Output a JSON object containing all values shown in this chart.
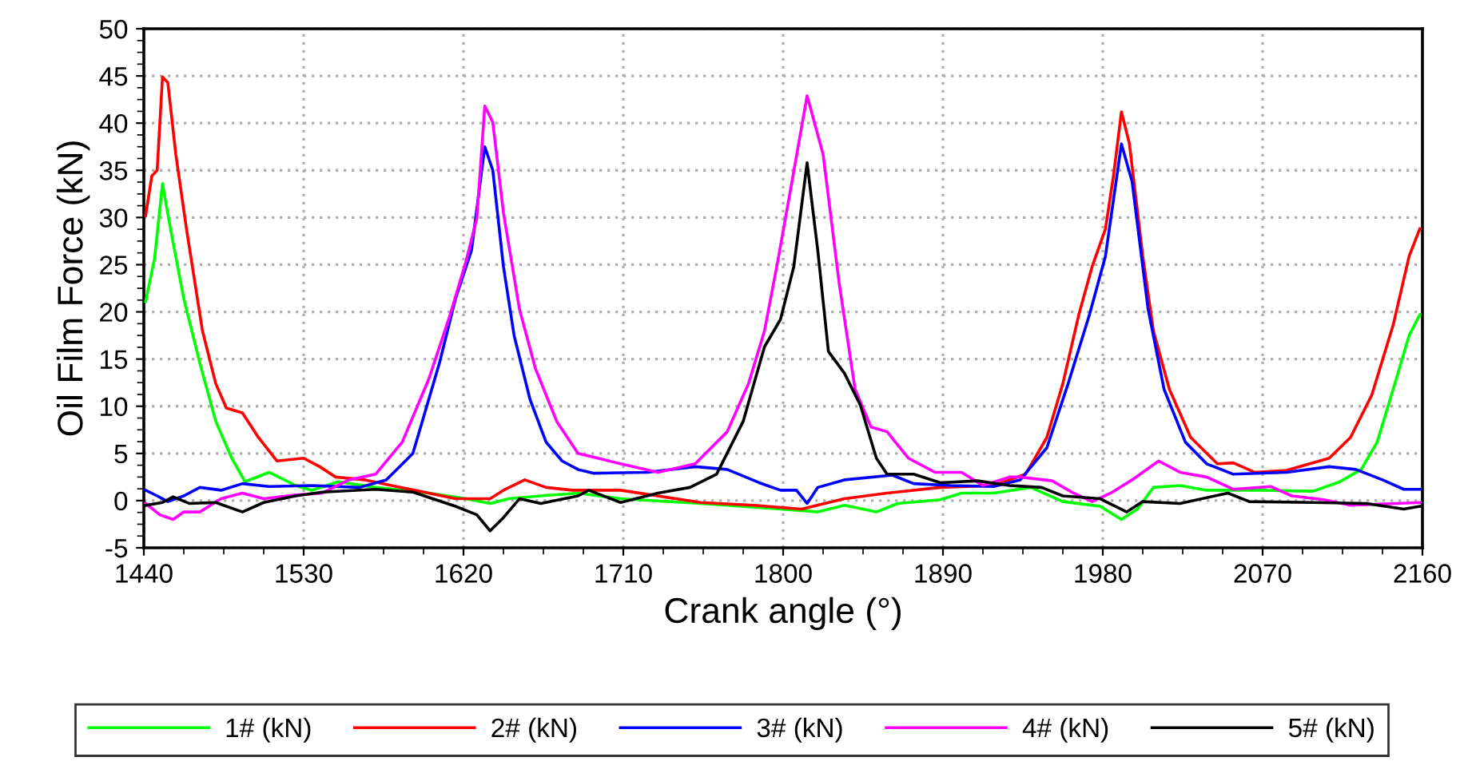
{
  "chart_data": {
    "type": "line",
    "xlabel": "Crank angle (°)",
    "ylabel": "Oil Film Force (kN)",
    "xlim": [
      1440,
      2160
    ],
    "ylim": [
      -5,
      50
    ],
    "xticks": [
      1440,
      1530,
      1620,
      1710,
      1800,
      1890,
      1980,
      2070,
      2160
    ],
    "yticks": [
      -5,
      0,
      5,
      10,
      15,
      20,
      25,
      30,
      35,
      40,
      45,
      50
    ],
    "grid": true,
    "legend": "bottom",
    "marker": "none",
    "line_style": "solid",
    "series": [
      {
        "name": "1# (kN)",
        "color": "#00ff00",
        "x": [
          1441,
          1446,
          1450.5,
          1455,
          1462.5,
          1471.5,
          1480.5,
          1489.5,
          1497,
          1510.5,
          1525.5,
          1534.5,
          1549.5,
          1570.5,
          1600.5,
          1621.5,
          1635,
          1645.5,
          1663.5,
          1684.5,
          1708.5,
          1753.5,
          1798.5,
          1819.5,
          1834.5,
          1852.5,
          1864.5,
          1888.5,
          1900.5,
          1918.5,
          1939.5,
          1957.5,
          1978.5,
          1990.5,
          1999.5,
          2008.5,
          2023.5,
          2038.5,
          2068.5,
          2098.5,
          2113.5,
          2125.5,
          2134.5,
          2143.5,
          2152.5,
          2158.5
        ],
        "values": [
          21.1,
          25.6,
          33.6,
          28.8,
          21.4,
          14.6,
          8.4,
          4.5,
          2.0,
          3.0,
          1.6,
          1.1,
          2.0,
          1.4,
          0.8,
          0.2,
          -0.3,
          0.2,
          0.5,
          0.8,
          0.2,
          -0.3,
          -0.9,
          -1.2,
          -0.5,
          -1.2,
          -0.3,
          0.1,
          0.8,
          0.8,
          1.4,
          -0.1,
          -0.6,
          -2.0,
          -0.9,
          1.4,
          1.6,
          1.1,
          1.1,
          1.0,
          2.0,
          3.3,
          6.2,
          11.8,
          17.5,
          19.7
        ]
      },
      {
        "name": "2# (kN)",
        "color": "#ff0000",
        "x": [
          1441,
          1444.5,
          1447.5,
          1450.5,
          1453.5,
          1458,
          1464,
          1473,
          1480.5,
          1486.5,
          1495.5,
          1504.5,
          1515,
          1530,
          1539,
          1548,
          1564.5,
          1579.5,
          1600.5,
          1615.5,
          1635,
          1642.5,
          1654.5,
          1666.5,
          1681.5,
          1708.5,
          1753.5,
          1783.5,
          1810.5,
          1834.5,
          1858.5,
          1888.5,
          1918.5,
          1936.5,
          1948.5,
          1957.5,
          1966.5,
          1974,
          1981.5,
          1986,
          1990.5,
          1995,
          2002.5,
          2008.5,
          2017.5,
          2029.5,
          2044.5,
          2053.5,
          2065.5,
          2083.5,
          2107.5,
          2119.5,
          2131.5,
          2143.5,
          2152.5,
          2158.5
        ],
        "values": [
          30.2,
          34.4,
          35.0,
          44.9,
          44.3,
          36.7,
          28.8,
          18.0,
          12.4,
          9.8,
          9.3,
          6.7,
          4.2,
          4.5,
          3.6,
          2.5,
          2.2,
          1.6,
          0.8,
          0.2,
          0.2,
          1.1,
          2.2,
          1.4,
          1.1,
          1.1,
          -0.2,
          -0.5,
          -0.9,
          0.2,
          0.8,
          1.4,
          1.6,
          2.8,
          6.7,
          12.4,
          19.7,
          24.8,
          28.8,
          34.4,
          41.2,
          37.8,
          25.9,
          18.0,
          11.8,
          6.7,
          3.9,
          4.0,
          3.0,
          3.2,
          4.5,
          6.7,
          11.2,
          18.6,
          25.9,
          28.8
        ]
      },
      {
        "name": "3# (kN)",
        "color": "#0000ff",
        "x": [
          1441,
          1447.5,
          1453.5,
          1462.5,
          1471.5,
          1483.5,
          1495.5,
          1510.5,
          1534.5,
          1561.5,
          1576.5,
          1591.5,
          1606.5,
          1615.5,
          1624.5,
          1632,
          1636.5,
          1642.5,
          1648.5,
          1657.5,
          1666.5,
          1675.5,
          1684.5,
          1693.5,
          1723.5,
          1750.5,
          1768.5,
          1786.5,
          1798.5,
          1807.5,
          1813.5,
          1819.5,
          1834.5,
          1861.5,
          1873.5,
          1894.5,
          1918.5,
          1933.5,
          1948.5,
          1960.5,
          1972.5,
          1981.5,
          1990.5,
          1996.5,
          2005.5,
          2014.5,
          2026.5,
          2038.5,
          2053.5,
          2083.5,
          2107.5,
          2122.5,
          2137.5,
          2149.5,
          2158.5
        ],
        "values": [
          1.1,
          0.5,
          -0.1,
          0.5,
          1.4,
          1.1,
          1.8,
          1.5,
          1.6,
          1.4,
          2.2,
          5.0,
          14.6,
          21.4,
          26.5,
          37.5,
          35.0,
          24.8,
          17.5,
          10.7,
          6.2,
          4.2,
          3.3,
          2.9,
          3.0,
          3.6,
          3.3,
          1.9,
          1.1,
          1.1,
          -0.3,
          1.4,
          2.2,
          2.7,
          1.8,
          1.6,
          1.5,
          2.2,
          5.6,
          12.4,
          19.7,
          25.9,
          37.8,
          33.8,
          20.3,
          11.8,
          6.2,
          3.9,
          2.8,
          3.0,
          3.6,
          3.3,
          2.2,
          1.2,
          1.2
        ]
      },
      {
        "name": "4# (kN)",
        "color": "#ff00ff",
        "x": [
          1441,
          1449,
          1456.5,
          1462.5,
          1471.5,
          1483.5,
          1495.5,
          1507.5,
          1525.5,
          1540.5,
          1555.5,
          1570.5,
          1585.5,
          1600.5,
          1612.5,
          1621.5,
          1627.5,
          1632,
          1636.5,
          1642.5,
          1651.5,
          1660.5,
          1672.5,
          1684.5,
          1708.5,
          1729.5,
          1750.5,
          1768.5,
          1780.5,
          1789.5,
          1797,
          1804.5,
          1813.5,
          1822.5,
          1831.5,
          1840.5,
          1849.5,
          1858.5,
          1870.5,
          1885.5,
          1900.5,
          1912.5,
          1927.5,
          1933.5,
          1951.5,
          1963.5,
          1974,
          1984.5,
          1996.5,
          2011.5,
          2023.5,
          2038.5,
          2053.5,
          2074.5,
          2086.5,
          2104.5,
          2119.5,
          2158.5
        ],
        "values": [
          -0.3,
          -1.5,
          -2.0,
          -1.2,
          -1.2,
          0.2,
          0.8,
          0.2,
          0.6,
          0.8,
          2.2,
          2.8,
          6.2,
          12.9,
          19.7,
          25.4,
          29.9,
          41.8,
          40.1,
          30.5,
          20.3,
          14.0,
          8.4,
          5.0,
          3.9,
          3.0,
          3.9,
          7.3,
          12.4,
          18.0,
          25.4,
          33.3,
          42.9,
          36.7,
          23.1,
          11.8,
          7.8,
          7.3,
          4.5,
          3.0,
          3.0,
          1.6,
          2.5,
          2.5,
          2.1,
          0.8,
          -0.1,
          0.8,
          2.2,
          4.2,
          3.0,
          2.5,
          1.2,
          1.5,
          0.5,
          0.1,
          -0.5,
          -0.2
        ]
      },
      {
        "name": "5# (kN)",
        "color": "#000000",
        "x": [
          1441,
          1450.5,
          1456.5,
          1465.5,
          1480.5,
          1495.5,
          1507.5,
          1525.5,
          1540.5,
          1570.5,
          1591.5,
          1615.5,
          1627.5,
          1635,
          1642.5,
          1651.5,
          1663.5,
          1684.5,
          1690.5,
          1708.5,
          1729.5,
          1747.5,
          1762.5,
          1777.5,
          1789.5,
          1798.5,
          1806,
          1813.5,
          1819.5,
          1825.5,
          1834.5,
          1843.5,
          1852.5,
          1858.5,
          1873.5,
          1888.5,
          1909.5,
          1927.5,
          1945.5,
          1957.5,
          1978.5,
          1993.5,
          2002.5,
          2023.5,
          2050.5,
          2062.5,
          2098.5,
          2128.5,
          2149.5,
          2158.5
        ],
        "values": [
          -0.5,
          -0.2,
          0.4,
          -0.3,
          -0.2,
          -1.2,
          -0.2,
          0.5,
          0.9,
          1.2,
          0.9,
          -0.6,
          -1.5,
          -3.2,
          -1.8,
          0.2,
          -0.3,
          0.5,
          1.1,
          -0.2,
          0.8,
          1.4,
          2.8,
          8.4,
          16.3,
          19.2,
          24.8,
          35.8,
          26.5,
          15.8,
          13.5,
          10.1,
          4.5,
          2.8,
          2.8,
          1.9,
          2.1,
          1.6,
          1.4,
          0.5,
          0.2,
          -1.2,
          -0.1,
          -0.3,
          0.8,
          -0.1,
          -0.2,
          -0.3,
          -0.9,
          -0.6
        ]
      }
    ]
  }
}
